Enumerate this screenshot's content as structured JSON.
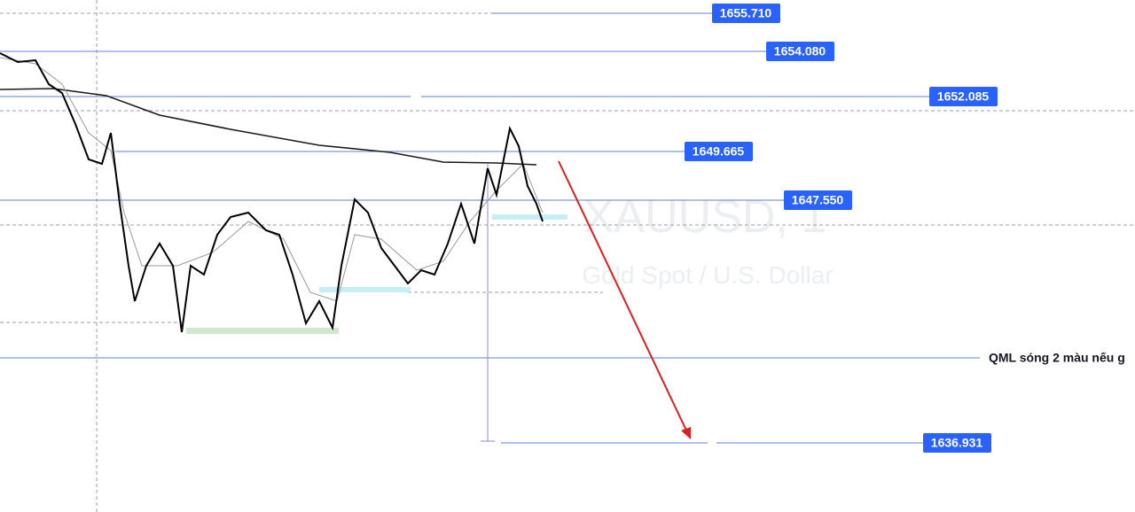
{
  "watermark": {
    "symbol": "XAUUSD, 1",
    "description": "Gold Spot / U.S. Dollar"
  },
  "price_labels": [
    "1655.710",
    "1654.080",
    "1652.085",
    "1649.665",
    "1647.550",
    "1636.931"
  ],
  "annotation": "QML sóng 2 màu nếu g"
}
